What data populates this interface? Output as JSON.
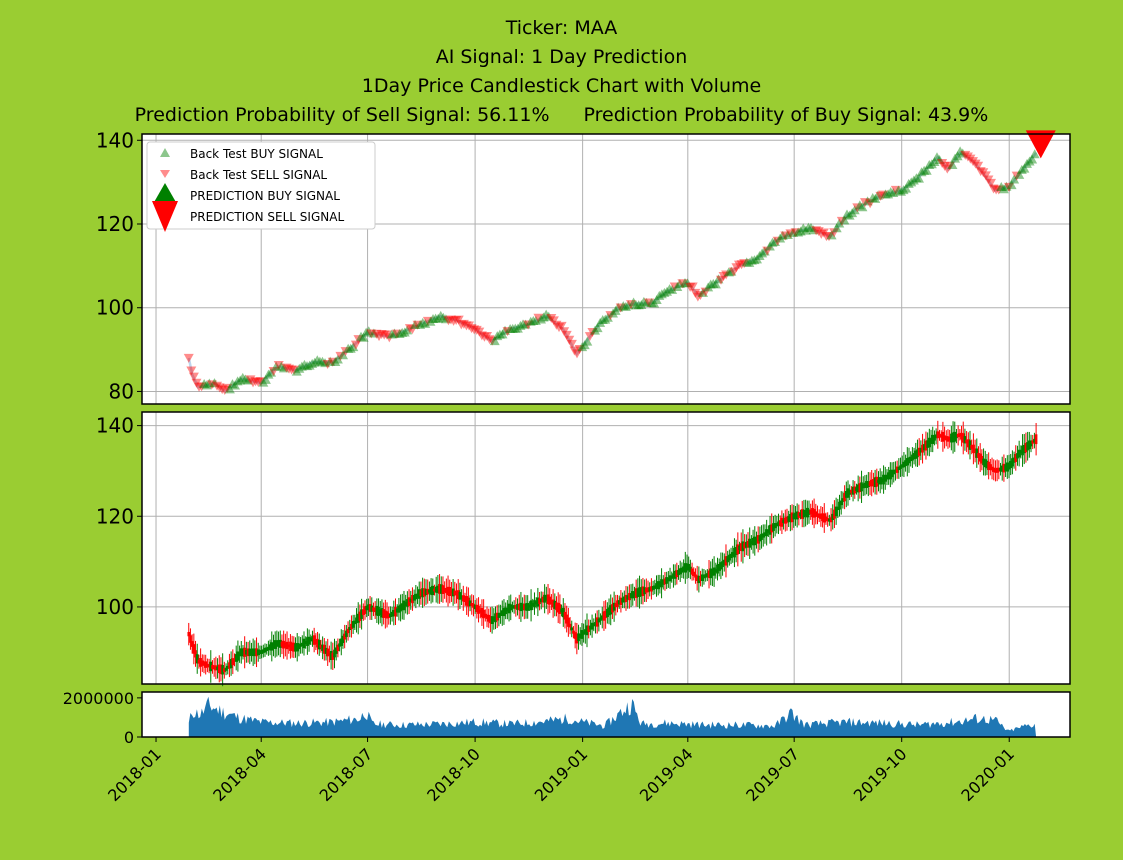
{
  "header": {
    "ticker_line": "Ticker: MAA",
    "signal_line": "AI Signal: 1 Day Prediction",
    "chart_line": "1Day Price Candlestick Chart with Volume",
    "sell_prob": "Prediction Probability of Sell Signal: 56.11%",
    "buy_prob": "Prediction Probability of Buy Signal: 43.9%"
  },
  "colors": {
    "background": "#9acd32",
    "buy": "#008000",
    "sell": "#ff0000",
    "volume": "#1f77b4",
    "grid": "#b0b0b0"
  },
  "chart_data": {
    "type": "candlestick",
    "x_ticks": [
      "2018-01",
      "2018-04",
      "2018-07",
      "2018-10",
      "2019-01",
      "2019-04",
      "2019-07",
      "2019-10",
      "2020-01"
    ],
    "x_range": [
      "2017-12-20",
      "2020-02-22"
    ],
    "legend": {
      "placement": "upper-left",
      "items": [
        {
          "label": "Back Test BUY SIGNAL",
          "marker": "triangle-up-small"
        },
        {
          "label": "Back Test SELL SIGNAL",
          "marker": "triangle-down-small"
        },
        {
          "label": "PREDICTION BUY SIGNAL",
          "marker": "triangle-up-large"
        },
        {
          "label": "PREDICTION SELL SIGNAL",
          "marker": "triangle-down-large"
        }
      ]
    },
    "price_panel": {
      "ylim": [
        77,
        141.5
      ],
      "yticks": [
        80,
        100,
        120,
        140
      ],
      "grid": true,
      "prediction": {
        "date": "2020-01-28",
        "price": 139.5,
        "signal": "SELL"
      }
    },
    "candle_panel": {
      "ylim": [
        83,
        143
      ],
      "yticks": [
        100,
        120,
        140
      ],
      "grid": true
    },
    "volume_panel": {
      "ylim": [
        0,
        2300000
      ],
      "yticks": [
        0,
        2000000
      ],
      "tick_labels": [
        "0",
        "2000000"
      ]
    },
    "price_series": [
      {
        "date": "2018-01-29",
        "price": 88
      },
      {
        "date": "2018-02-01",
        "price": 84
      },
      {
        "date": "2018-02-06",
        "price": 81
      },
      {
        "date": "2018-02-20",
        "price": 82
      },
      {
        "date": "2018-03-01",
        "price": 80
      },
      {
        "date": "2018-03-15",
        "price": 83
      },
      {
        "date": "2018-04-01",
        "price": 82
      },
      {
        "date": "2018-04-15",
        "price": 86
      },
      {
        "date": "2018-05-01",
        "price": 85
      },
      {
        "date": "2018-05-15",
        "price": 87
      },
      {
        "date": "2018-06-01",
        "price": 87
      },
      {
        "date": "2018-06-15",
        "price": 90
      },
      {
        "date": "2018-07-01",
        "price": 94
      },
      {
        "date": "2018-07-20",
        "price": 93
      },
      {
        "date": "2018-08-15",
        "price": 96
      },
      {
        "date": "2018-09-01",
        "price": 98
      },
      {
        "date": "2018-09-15",
        "price": 97
      },
      {
        "date": "2018-10-01",
        "price": 95
      },
      {
        "date": "2018-10-15",
        "price": 92
      },
      {
        "date": "2018-11-01",
        "price": 95
      },
      {
        "date": "2018-11-15",
        "price": 96
      },
      {
        "date": "2018-12-01",
        "price": 98
      },
      {
        "date": "2018-12-15",
        "price": 95
      },
      {
        "date": "2018-12-27",
        "price": 89
      },
      {
        "date": "2019-01-15",
        "price": 96
      },
      {
        "date": "2019-02-01",
        "price": 100
      },
      {
        "date": "2019-02-15",
        "price": 101
      },
      {
        "date": "2019-03-01",
        "price": 101
      },
      {
        "date": "2019-03-15",
        "price": 104
      },
      {
        "date": "2019-04-01",
        "price": 106
      },
      {
        "date": "2019-04-10",
        "price": 103
      },
      {
        "date": "2019-04-25",
        "price": 106
      },
      {
        "date": "2019-05-15",
        "price": 110
      },
      {
        "date": "2019-06-01",
        "price": 112
      },
      {
        "date": "2019-06-15",
        "price": 116
      },
      {
        "date": "2019-07-01",
        "price": 118
      },
      {
        "date": "2019-07-15",
        "price": 119
      },
      {
        "date": "2019-08-01",
        "price": 117
      },
      {
        "date": "2019-08-15",
        "price": 122
      },
      {
        "date": "2019-09-01",
        "price": 125
      },
      {
        "date": "2019-09-15",
        "price": 127
      },
      {
        "date": "2019-10-01",
        "price": 128
      },
      {
        "date": "2019-10-15",
        "price": 131
      },
      {
        "date": "2019-11-01",
        "price": 136
      },
      {
        "date": "2019-11-10",
        "price": 133
      },
      {
        "date": "2019-11-20",
        "price": 137
      },
      {
        "date": "2019-12-01",
        "price": 135
      },
      {
        "date": "2019-12-10",
        "price": 132
      },
      {
        "date": "2019-12-20",
        "price": 128
      },
      {
        "date": "2020-01-01",
        "price": 129
      },
      {
        "date": "2020-01-10",
        "price": 132
      },
      {
        "date": "2020-01-24",
        "price": 137
      }
    ],
    "candle_series": [
      {
        "date": "2018-01-29",
        "price": 94
      },
      {
        "date": "2018-02-06",
        "price": 88
      },
      {
        "date": "2018-02-15",
        "price": 87
      },
      {
        "date": "2018-03-01",
        "price": 86
      },
      {
        "date": "2018-03-15",
        "price": 90
      },
      {
        "date": "2018-04-01",
        "price": 90
      },
      {
        "date": "2018-04-15",
        "price": 92
      },
      {
        "date": "2018-05-01",
        "price": 91
      },
      {
        "date": "2018-05-15",
        "price": 93
      },
      {
        "date": "2018-06-01",
        "price": 89
      },
      {
        "date": "2018-06-15",
        "price": 95
      },
      {
        "date": "2018-07-01",
        "price": 100
      },
      {
        "date": "2018-07-20",
        "price": 98
      },
      {
        "date": "2018-08-15",
        "price": 103
      },
      {
        "date": "2018-09-01",
        "price": 104
      },
      {
        "date": "2018-09-15",
        "price": 103
      },
      {
        "date": "2018-10-01",
        "price": 100
      },
      {
        "date": "2018-10-15",
        "price": 97
      },
      {
        "date": "2018-11-01",
        "price": 100
      },
      {
        "date": "2018-11-15",
        "price": 100
      },
      {
        "date": "2018-12-01",
        "price": 102
      },
      {
        "date": "2018-12-15",
        "price": 99
      },
      {
        "date": "2018-12-27",
        "price": 93
      },
      {
        "date": "2019-01-15",
        "price": 97
      },
      {
        "date": "2019-02-01",
        "price": 101
      },
      {
        "date": "2019-02-15",
        "price": 103
      },
      {
        "date": "2019-03-01",
        "price": 104
      },
      {
        "date": "2019-03-15",
        "price": 106
      },
      {
        "date": "2019-04-01",
        "price": 109
      },
      {
        "date": "2019-04-10",
        "price": 106
      },
      {
        "date": "2019-04-25",
        "price": 108
      },
      {
        "date": "2019-05-15",
        "price": 113
      },
      {
        "date": "2019-06-01",
        "price": 115
      },
      {
        "date": "2019-06-15",
        "price": 118
      },
      {
        "date": "2019-07-01",
        "price": 120
      },
      {
        "date": "2019-07-15",
        "price": 121
      },
      {
        "date": "2019-08-01",
        "price": 119
      },
      {
        "date": "2019-08-15",
        "price": 125
      },
      {
        "date": "2019-09-01",
        "price": 127
      },
      {
        "date": "2019-09-15",
        "price": 128
      },
      {
        "date": "2019-10-01",
        "price": 131
      },
      {
        "date": "2019-10-15",
        "price": 134
      },
      {
        "date": "2019-11-01",
        "price": 138
      },
      {
        "date": "2019-11-10",
        "price": 137
      },
      {
        "date": "2019-11-20",
        "price": 138
      },
      {
        "date": "2019-12-01",
        "price": 135
      },
      {
        "date": "2019-12-10",
        "price": 132
      },
      {
        "date": "2019-12-20",
        "price": 130
      },
      {
        "date": "2020-01-01",
        "price": 131
      },
      {
        "date": "2020-01-10",
        "price": 134
      },
      {
        "date": "2020-01-24",
        "price": 137
      }
    ],
    "volume_series": [
      {
        "date": "2018-01-29",
        "volume": 700000
      },
      {
        "date": "2018-02-01",
        "volume": 1400000
      },
      {
        "date": "2018-02-08",
        "volume": 1200000
      },
      {
        "date": "2018-02-15",
        "volume": 1700000
      },
      {
        "date": "2018-03-01",
        "volume": 1300000
      },
      {
        "date": "2018-03-15",
        "volume": 1000000
      },
      {
        "date": "2018-04-01",
        "volume": 800000
      },
      {
        "date": "2018-05-01",
        "volume": 750000
      },
      {
        "date": "2018-06-01",
        "volume": 800000
      },
      {
        "date": "2018-06-25",
        "volume": 1000000
      },
      {
        "date": "2018-06-29",
        "volume": 1400000
      },
      {
        "date": "2018-07-05",
        "volume": 700000
      },
      {
        "date": "2018-08-01",
        "volume": 650000
      },
      {
        "date": "2018-09-01",
        "volume": 700000
      },
      {
        "date": "2018-10-01",
        "volume": 800000
      },
      {
        "date": "2018-11-01",
        "volume": 700000
      },
      {
        "date": "2018-12-01",
        "volume": 850000
      },
      {
        "date": "2018-12-20",
        "volume": 1000000
      },
      {
        "date": "2019-01-01",
        "volume": 800000
      },
      {
        "date": "2019-01-20",
        "volume": 600000
      },
      {
        "date": "2019-02-12",
        "volume": 1800000
      },
      {
        "date": "2019-02-20",
        "volume": 700000
      },
      {
        "date": "2019-03-15",
        "volume": 750000
      },
      {
        "date": "2019-04-15",
        "volume": 650000
      },
      {
        "date": "2019-05-15",
        "volume": 650000
      },
      {
        "date": "2019-06-15",
        "volume": 600000
      },
      {
        "date": "2019-06-28",
        "volume": 1300000
      },
      {
        "date": "2019-07-10",
        "volume": 650000
      },
      {
        "date": "2019-08-15",
        "volume": 800000
      },
      {
        "date": "2019-09-15",
        "volume": 750000
      },
      {
        "date": "2019-10-15",
        "volume": 650000
      },
      {
        "date": "2019-11-15",
        "volume": 800000
      },
      {
        "date": "2019-12-06",
        "volume": 1000000
      },
      {
        "date": "2019-12-20",
        "volume": 900000
      },
      {
        "date": "2019-12-31",
        "volume": 300000
      },
      {
        "date": "2020-01-15",
        "volume": 600000
      },
      {
        "date": "2020-01-24",
        "volume": 700000
      }
    ]
  }
}
